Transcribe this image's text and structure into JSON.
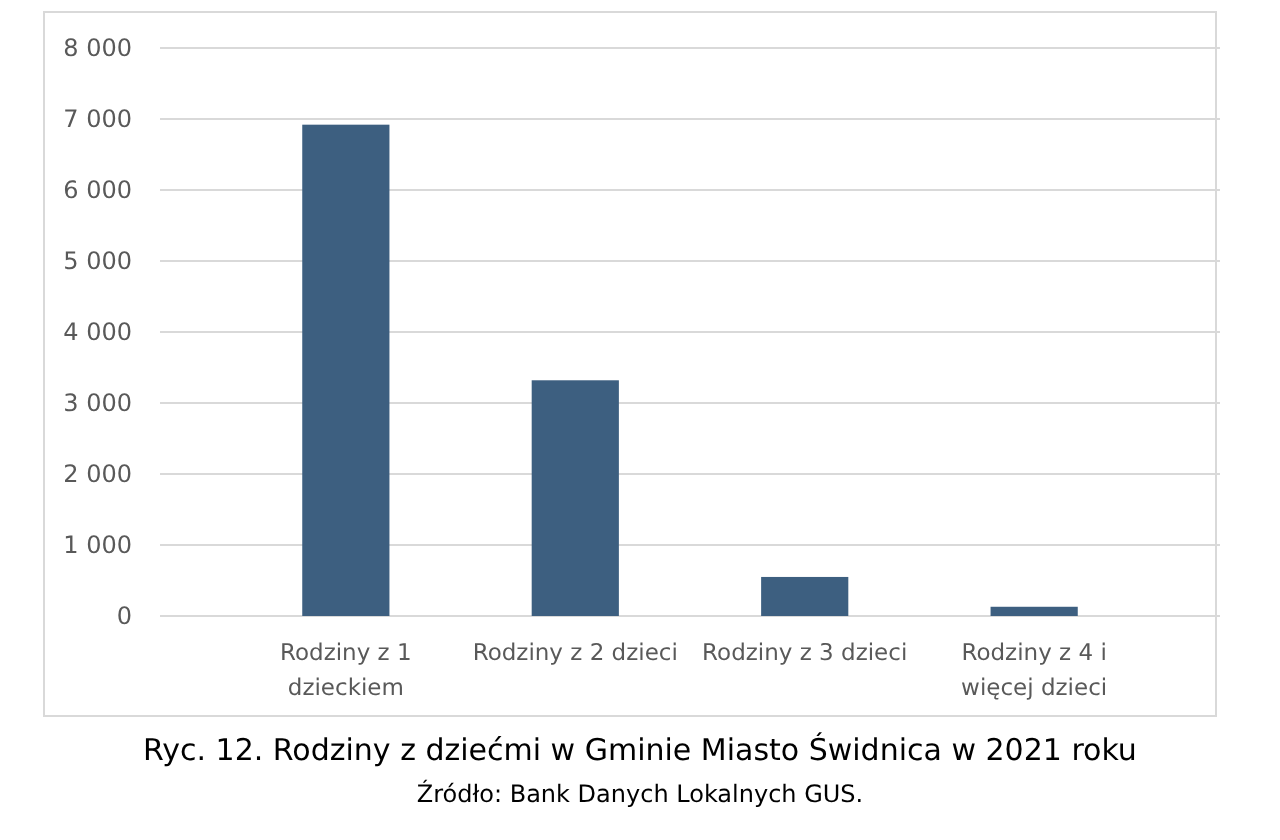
{
  "chart_data": {
    "type": "bar",
    "title": "Ryc. 12. Rodziny z dziećmi w Gminie Miasto Świdnica w 2021 roku",
    "annotations": [
      "Źródło: Bank Danych Lokalnych GUS."
    ],
    "categories": [
      "Rodziny z 1 dzieckiem",
      "Rodziny z 2 dzieci",
      "Rodziny z 3 dzieci",
      "Rodziny z 4 i więcej dzieci"
    ],
    "values": [
      6920,
      3320,
      550,
      130
    ],
    "color": "#3d5f80",
    "ylim": [
      0,
      8000
    ],
    "yticks": [
      {
        "value": 0,
        "label": "0"
      },
      {
        "value": 1000,
        "label": "1 000"
      },
      {
        "value": 2000,
        "label": "2 000"
      },
      {
        "value": 3000,
        "label": "3 000"
      },
      {
        "value": 4000,
        "label": "4 000"
      },
      {
        "value": 5000,
        "label": "5 000"
      },
      {
        "value": 6000,
        "label": "6 000"
      },
      {
        "value": 7000,
        "label": "7 000"
      },
      {
        "value": 8000,
        "label": "8 000"
      }
    ],
    "grid": "y"
  }
}
